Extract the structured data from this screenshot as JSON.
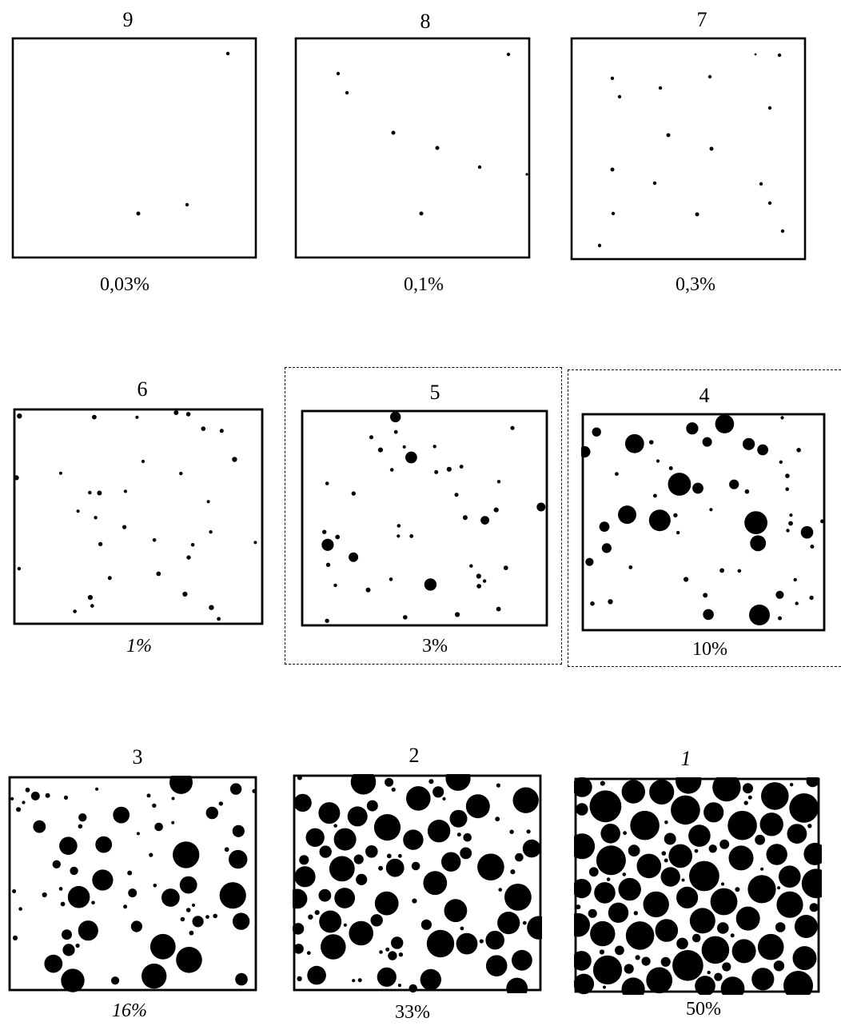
{
  "panels": [
    {
      "number": "9",
      "fraction": "0,03%",
      "fraction_value": 0.03,
      "highlighted": false
    },
    {
      "number": "8",
      "fraction": "0,1%",
      "fraction_value": 0.1,
      "highlighted": false
    },
    {
      "number": "7",
      "fraction": "0,3%",
      "fraction_value": 0.3,
      "highlighted": false
    },
    {
      "number": "6",
      "fraction": "1%",
      "fraction_value": 1,
      "highlighted": false
    },
    {
      "number": "5",
      "fraction": "3%",
      "fraction_value": 3,
      "highlighted": true
    },
    {
      "number": "4",
      "fraction": "10%",
      "fraction_value": 10,
      "highlighted": true
    },
    {
      "number": "3",
      "fraction": "16%",
      "fraction_value": 16,
      "highlighted": false
    },
    {
      "number": "2",
      "fraction": "33%",
      "fraction_value": 33,
      "highlighted": false
    },
    {
      "number": "1",
      "fraction": "50%",
      "fraction_value": 50,
      "highlighted": false
    }
  ],
  "colors": {
    "ink": "#000000",
    "paper": "#ffffff"
  }
}
